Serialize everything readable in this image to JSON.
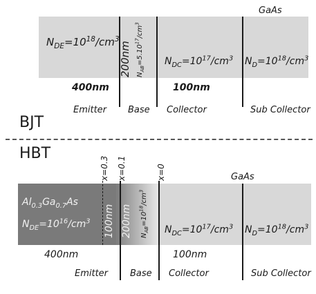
{
  "bjt": {
    "title": "BJT",
    "material": "GaAs",
    "emitter_doping": {
      "prefix": "N",
      "sub": "DE",
      "eq": "=10",
      "sup": "18",
      "unit": "/cm",
      "unit_sup": "3"
    },
    "base_thickness": "200nm",
    "base_doping": {
      "prefix": "N",
      "sub": "AB",
      "eq": "=5.10",
      "sup": "17",
      "unit": "/cm",
      "unit_sup": "3"
    },
    "collector_doping": {
      "prefix": "N",
      "sub": "DC",
      "eq": "=10",
      "sup": "17",
      "unit": "/cm",
      "unit_sup": "3"
    },
    "subcollector_doping": {
      "prefix": "N",
      "sub": "D",
      "eq": "=10",
      "sup": "18",
      "unit": "/cm",
      "unit_sup": "3"
    },
    "emitter_thickness": "400nm",
    "collector_thickness": "100nm",
    "regions": [
      "Emitter",
      "Base",
      "Collector",
      "Sub Collector"
    ]
  },
  "hbt": {
    "title": "HBT",
    "material": "GaAs",
    "x_markers": [
      "x=0.3",
      "x=0.1",
      "x=0"
    ],
    "emitter_composition": {
      "a": "Al",
      "a_sub": "0.3",
      "b": "Ga",
      "b_sub": "0.7",
      "c": "As"
    },
    "emitter_doping": {
      "prefix": "N",
      "sub": "DE",
      "eq": "=10",
      "sup": "16",
      "unit": "/cm",
      "unit_sup": "3"
    },
    "grade_thickness": "100nm",
    "base_thickness": "200nm",
    "base_doping": {
      "prefix": "N",
      "sub": "AB",
      "eq": "=10",
      "sup": "18",
      "unit": "/cm",
      "unit_sup": "3"
    },
    "collector_doping": {
      "prefix": "N",
      "sub": "DC",
      "eq": "=10",
      "sup": "17",
      "unit": "/cm",
      "unit_sup": "3"
    },
    "subcollector_doping": {
      "prefix": "N",
      "sub": "D",
      "eq": "=10",
      "sup": "18",
      "unit": "/cm",
      "unit_sup": "3"
    },
    "emitter_thickness": "400nm",
    "collector_thickness": "100nm",
    "regions": [
      "Emitter",
      "Base",
      "Collector",
      "Sub Collector"
    ]
  },
  "colors": {
    "gaas_fill": "#d8d8d8",
    "algaas_fill": "#7a7a7a",
    "grade_light": "#e0e0e0",
    "line": "#1a1a1a"
  }
}
